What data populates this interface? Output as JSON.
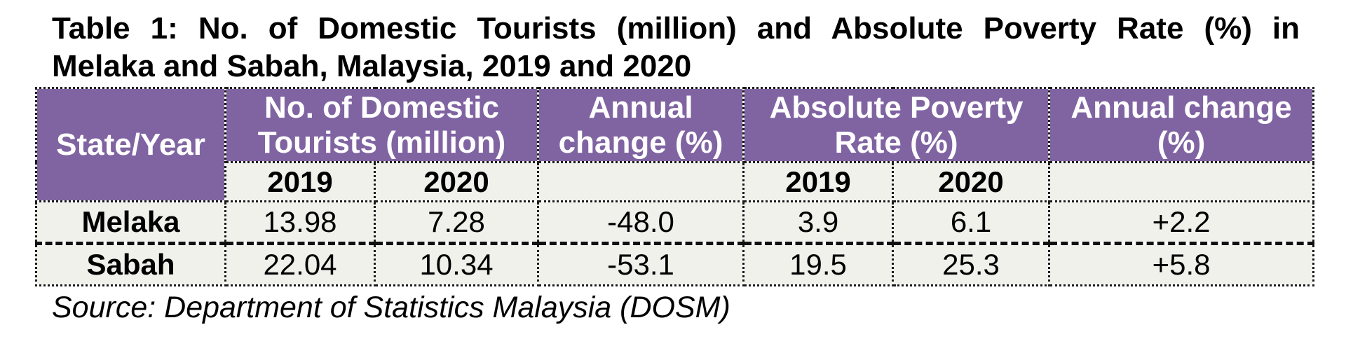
{
  "title": {
    "line1": "Table 1: No. of Domestic Tourists (million) and Absolute Poverty Rate (%) in",
    "line2": "Melaka and Sabah, Malaysia, 2019 and 2020"
  },
  "table": {
    "header": {
      "state": "State/Year",
      "tourists": "No. of Domestic Tourists (million)",
      "tourists_change": "Annual change (%)",
      "poverty": "Absolute Poverty Rate (%)",
      "poverty_change": "Annual change (%)"
    },
    "years": [
      "2019",
      "2020",
      "2019",
      "2020"
    ],
    "rows": [
      {
        "state": "Melaka",
        "tourists_2019": "13.98",
        "tourists_2020": "7.28",
        "tourists_change": "-48.0",
        "poverty_2019": "3.9",
        "poverty_2020": "6.1",
        "poverty_change": "+2.2"
      },
      {
        "state": "Sabah",
        "tourists_2019": "22.04",
        "tourists_2020": "10.34",
        "tourists_change": "-53.1",
        "poverty_2019": "19.5",
        "poverty_2020": "25.3",
        "poverty_change": "+5.8"
      }
    ]
  },
  "source": "Source: Department of Statistics Malaysia (DOSM)",
  "colors": {
    "header_bg": "#8064a2",
    "cell_bg": "#f1f1eb"
  }
}
